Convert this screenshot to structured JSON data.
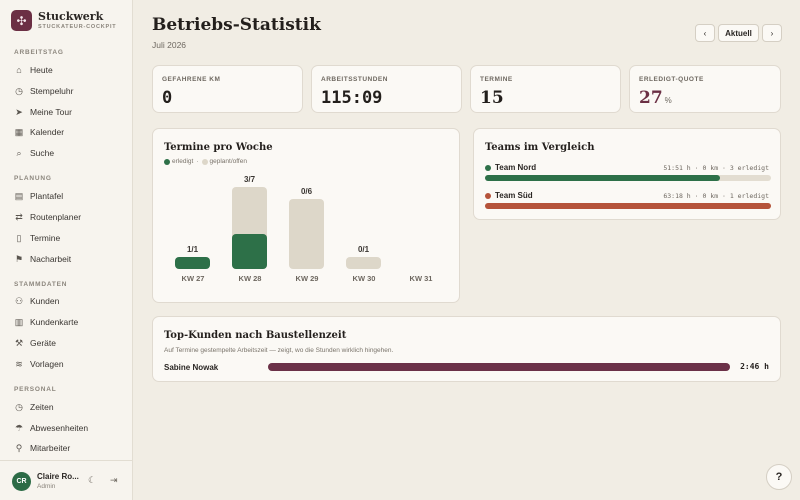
{
  "brand": {
    "name": "Stuckwerk",
    "subtitle": "STUCKATEUR-COCKPIT",
    "logo_icon": "flower-icon",
    "logo_color": "#6b2f44"
  },
  "sidebar": {
    "sections": [
      {
        "label": "ARBEITSTAG",
        "items": [
          {
            "label": "Heute",
            "icon": "home-icon"
          },
          {
            "label": "Stempeluhr",
            "icon": "clock-icon"
          },
          {
            "label": "Meine Tour",
            "icon": "send-icon"
          },
          {
            "label": "Kalender",
            "icon": "calendar-icon"
          },
          {
            "label": "Suche",
            "icon": "search-icon"
          }
        ]
      },
      {
        "label": "PLANUNG",
        "items": [
          {
            "label": "Plantafel",
            "icon": "grid-icon"
          },
          {
            "label": "Routenplaner",
            "icon": "route-icon"
          },
          {
            "label": "Termine",
            "icon": "clipboard-icon"
          },
          {
            "label": "Nacharbeit",
            "icon": "flag-icon"
          }
        ]
      },
      {
        "label": "STAMMDATEN",
        "items": [
          {
            "label": "Kunden",
            "icon": "users-icon"
          },
          {
            "label": "Kundenkarte",
            "icon": "map-icon"
          },
          {
            "label": "Geräte",
            "icon": "hammer-icon"
          },
          {
            "label": "Vorlagen",
            "icon": "layers-icon"
          }
        ]
      },
      {
        "label": "PERSONAL",
        "items": [
          {
            "label": "Zeiten",
            "icon": "clock-icon"
          },
          {
            "label": "Abwesenheiten",
            "icon": "beach-icon"
          },
          {
            "label": "Mitarbeiter",
            "icon": "user-icon"
          }
        ]
      }
    ]
  },
  "user": {
    "initials": "CR",
    "name": "Claire Ro...",
    "role": "Admin"
  },
  "header": {
    "title": "Betriebs-Statistik",
    "subtitle": "Juli 2026",
    "today_label": "Aktuell",
    "prev_icon": "chevron-left-icon",
    "next_icon": "chevron-right-icon"
  },
  "stats": {
    "km": {
      "label": "GEFAHRENE KM",
      "value": "0"
    },
    "hours": {
      "label": "ARBEITSSTUNDEN",
      "value": "115:09"
    },
    "appointments": {
      "label": "TERMINE",
      "value": "15"
    },
    "quota": {
      "label": "ERLEDIGT-QUOTE",
      "value": "27",
      "unit": "%"
    }
  },
  "weekly": {
    "title": "Termine pro Woche",
    "legend_done": "erledigt",
    "legend_sep": "·",
    "legend_planned": "geplant/offen",
    "colors": {
      "done": "#2d7048",
      "planned": "#ddd7c9"
    }
  },
  "chart_data": {
    "type": "bar",
    "categories": [
      "KW 27",
      "KW 28",
      "KW 29",
      "KW 30",
      "KW 31"
    ],
    "series": [
      {
        "name": "erledigt",
        "values": [
          1,
          3,
          0,
          0,
          0
        ]
      },
      {
        "name": "geplant/offen",
        "values": [
          1,
          7,
          6,
          1,
          0
        ]
      }
    ],
    "labels": [
      "1/1",
      "3/7",
      "0/6",
      "0/1",
      ""
    ],
    "title": "Termine pro Woche"
  },
  "teams": {
    "title": "Teams im Vergleich",
    "items": [
      {
        "name": "Team Nord",
        "meta": "51:51 h · 0 km · 3 erledigt",
        "color": "#2d7048",
        "share": 0.82
      },
      {
        "name": "Team Süd",
        "meta": "63:18 h · 0 km · 1 erledigt",
        "color": "#b5533a",
        "share": 1.0
      }
    ]
  },
  "top_customers": {
    "title": "Top-Kunden nach Baustellenzeit",
    "subtitle": "Auf Termine gestempelte Arbeitszeit — zeigt, wo die Stunden wirklich hingehen.",
    "items": [
      {
        "name": "Sabine Nowak",
        "time": "2:46 h",
        "share": 1.0
      }
    ]
  },
  "help": {
    "label": "?"
  }
}
